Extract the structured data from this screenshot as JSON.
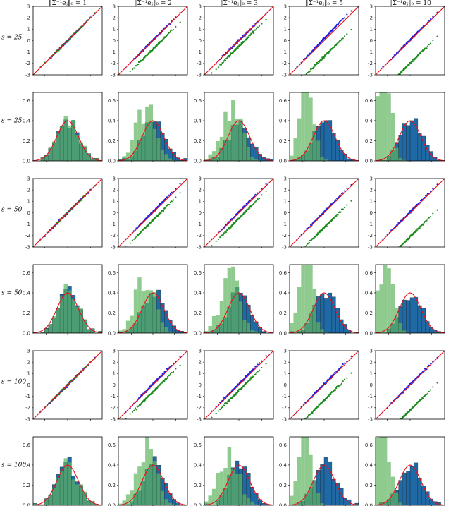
{
  "chart_data": {
    "type": "grid of qq-plots and histograms",
    "column_titles": [
      "‖Σ⁻¹eⱼ‖₀ = 1",
      "‖Σ⁻¹eⱼ‖₀ = 2",
      "‖Σ⁻¹eⱼ‖₀ = 3",
      "‖Σ⁻¹eⱼ‖₀ = 5",
      "‖Σ⁻¹eⱼ‖₀ = 10"
    ],
    "row_labels": [
      "s = 25",
      "s = 25",
      "s = 50",
      "s = 50",
      "s = 100",
      "s = 100"
    ],
    "row_types": [
      "qq",
      "hist",
      "qq",
      "hist",
      "qq",
      "hist"
    ],
    "qq_axes": {
      "xlim": [
        -3,
        3
      ],
      "ylim": [
        -3,
        3
      ],
      "yticks": [
        "-3",
        "-2",
        "-1",
        "0",
        "1",
        "2",
        "3"
      ]
    },
    "hist_axes": {
      "xlim": [
        -3.2,
        3.2
      ],
      "ylim": [
        0,
        0.68
      ],
      "yticks": [
        "0.0",
        "0.2",
        "0.4",
        "0.6"
      ]
    },
    "bottom_xticks": [
      "-2",
      "0",
      "2"
    ],
    "colors": {
      "reference_line": "#e8101a",
      "debiased": "#1f1fe0",
      "naive": "#1e8c1e",
      "hist_debiased": "#1f6aa5",
      "hist_naive": "#5fb35f",
      "normal_pdf": "#e8101a"
    },
    "qq_offsets_naive": [
      [
        0.0,
        -0.75,
        -0.5,
        -1.4,
        -2.0
      ],
      [
        0.0,
        -0.65,
        -0.5,
        -1.3,
        -2.1
      ],
      [
        0.0,
        -0.6,
        -0.5,
        -1.35,
        -2.2
      ]
    ],
    "qq_offsets_debiased": [
      [
        0.0,
        0.05,
        0.0,
        0.3,
        0.1
      ],
      [
        0.0,
        0.15,
        0.1,
        0.1,
        0.1
      ],
      [
        0.0,
        0.1,
        0.15,
        0.1,
        0.05
      ]
    ],
    "hist_naive_shift": [
      [
        0.0,
        -0.6,
        -0.7,
        -1.6,
        -2.4
      ],
      [
        0.0,
        -0.7,
        -0.8,
        -1.7,
        -2.2
      ],
      [
        0.0,
        -0.6,
        -0.9,
        -1.8,
        -2.5
      ]
    ]
  }
}
